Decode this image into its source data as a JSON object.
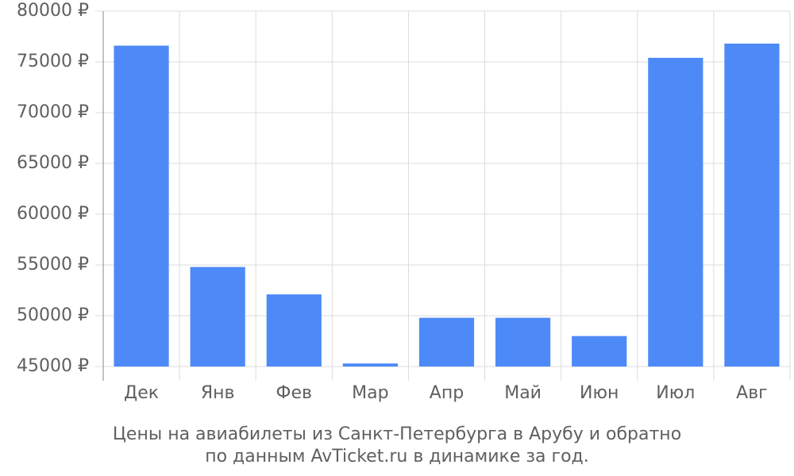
{
  "chart_data": {
    "type": "bar",
    "title": "Цены на авиабилеты из Санкт-Петербурга в Арубу и обратно",
    "subtitle": "по данным AvTicket.ru в динамике за год.",
    "categories": [
      "Дек",
      "Янв",
      "Фев",
      "Мар",
      "Апр",
      "Май",
      "Июн",
      "Июл",
      "Авг"
    ],
    "values": [
      76600,
      54800,
      52100,
      45300,
      49800,
      49800,
      48000,
      75400,
      76800
    ],
    "color": "#4d8af8",
    "ylim": [
      45000,
      80000
    ],
    "yticks": [
      {
        "value": 45000,
        "label": "45000 ₽"
      },
      {
        "value": 50000,
        "label": "50000 ₽"
      },
      {
        "value": 55000,
        "label": "55000 ₽"
      },
      {
        "value": 60000,
        "label": "60000 ₽"
      },
      {
        "value": 65000,
        "label": "65000 ₽"
      },
      {
        "value": 70000,
        "label": "70000 ₽"
      },
      {
        "value": 75000,
        "label": "75000 ₽"
      },
      {
        "value": 80000,
        "label": "80000 ₽"
      }
    ],
    "grid": true
  }
}
